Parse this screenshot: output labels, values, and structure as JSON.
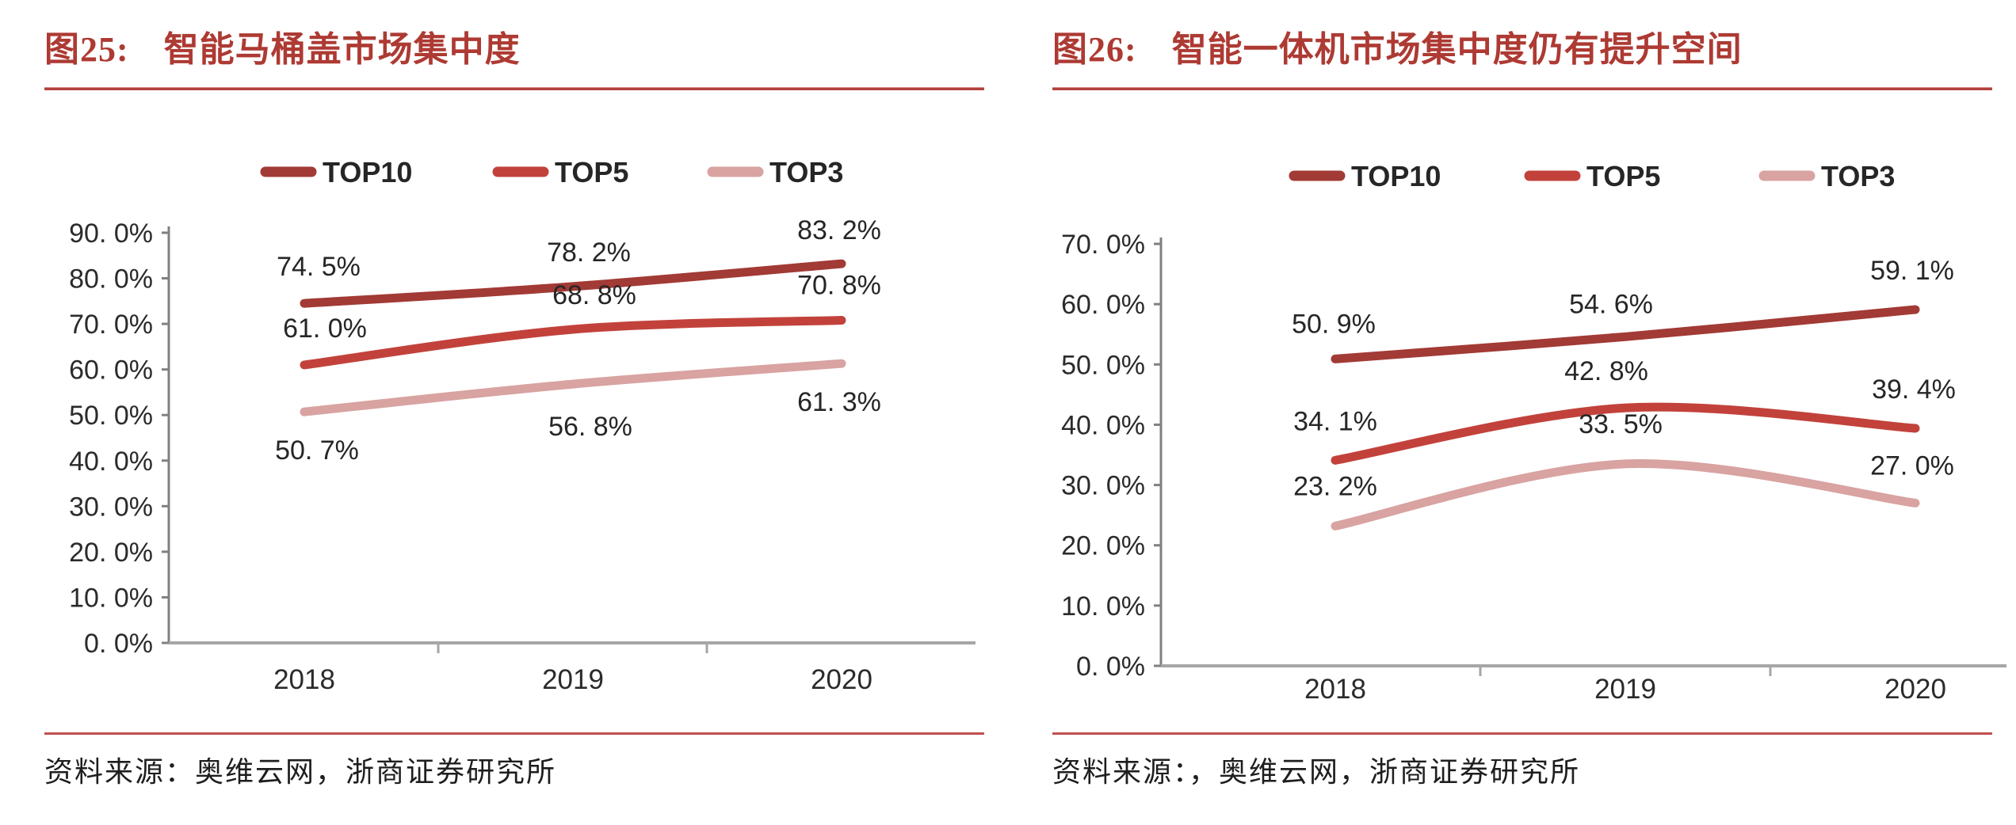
{
  "page": {
    "background": "#ffffff",
    "accent_color": "#ad3a33",
    "title_rule_color": "#b2423c",
    "source_rule_color": "#c0504d",
    "axis_line_color": "#a6a6a6",
    "axis_tick_color": "#808080",
    "text_color": "#262626"
  },
  "figures": [
    {
      "label": "图25:",
      "title": "智能马桶盖市场集中度",
      "source": "资料来源：奥维云网，浙商证券研究所",
      "chart_data": {
        "type": "line",
        "categories": [
          "2018",
          "2019",
          "2020"
        ],
        "ylim": [
          0,
          90
        ],
        "ytick_step": 10,
        "ytick_labels": [
          "0. 0%",
          "10. 0%",
          "20. 0%",
          "30. 0%",
          "40. 0%",
          "50. 0%",
          "60. 0%",
          "70. 0%",
          "80. 0%",
          "90. 0%"
        ],
        "grid": false,
        "legend_position": "top",
        "series": [
          {
            "name": "TOP10",
            "color": "#a23a35",
            "values": [
              74.5,
              78.2,
              83.2
            ],
            "point_labels": [
              "74. 5%",
              "78. 2%",
              "83. 2%"
            ]
          },
          {
            "name": "TOP5",
            "color": "#c2423b",
            "values": [
              61.0,
              68.8,
              70.8
            ],
            "point_labels": [
              "61. 0%",
              "68. 8%",
              "70. 8%"
            ]
          },
          {
            "name": "TOP3",
            "color": "#d8a3a1",
            "values": [
              50.7,
              56.8,
              61.3
            ],
            "point_labels": [
              "50. 7%",
              "56. 8%",
              "61. 3%"
            ]
          }
        ],
        "label_offsets": [
          [
            [
              18,
              -47
            ],
            [
              20,
              -44
            ],
            [
              -3,
              -43
            ]
          ],
          [
            [
              26,
              -47
            ],
            [
              27,
              -44
            ],
            [
              -3,
              -45
            ]
          ],
          [
            [
              16,
              48
            ],
            [
              22,
              53
            ],
            [
              -3,
              48
            ]
          ]
        ]
      }
    },
    {
      "label": "图26:",
      "title": "智能一体机市场集中度仍有提升空间",
      "source": "资料来源：，奥维云网，浙商证券研究所",
      "chart_data": {
        "type": "line",
        "categories": [
          "2018",
          "2019",
          "2020"
        ],
        "ylim": [
          0,
          70
        ],
        "ytick_step": 10,
        "ytick_labels": [
          "0. 0%",
          "10. 0%",
          "20. 0%",
          "30. 0%",
          "40. 0%",
          "50. 0%",
          "60. 0%",
          "70. 0%"
        ],
        "grid": false,
        "legend_position": "top",
        "series": [
          {
            "name": "TOP10",
            "color": "#a23a35",
            "values": [
              50.9,
              54.6,
              59.1
            ],
            "point_labels": [
              "50. 9%",
              "54. 6%",
              "59. 1%"
            ]
          },
          {
            "name": "TOP5",
            "color": "#c2423b",
            "values": [
              34.1,
              42.8,
              39.4
            ],
            "point_labels": [
              "34. 1%",
              "42. 8%",
              "39. 4%"
            ]
          },
          {
            "name": "TOP3",
            "color": "#d8a3a1",
            "values": [
              23.2,
              33.5,
              27.0
            ],
            "point_labels": [
              "23. 2%",
              "33. 5%",
              "27. 0%"
            ]
          }
        ],
        "label_offsets": [
          [
            [
              -2,
              -45
            ],
            [
              -18,
              -42
            ],
            [
              -4,
              -50
            ]
          ],
          [
            [
              0,
              -50
            ],
            [
              -24,
              -47
            ],
            [
              -2,
              -50
            ]
          ],
          [
            [
              0,
              -51
            ],
            [
              -6,
              -51
            ],
            [
              -4,
              -48
            ]
          ]
        ]
      }
    }
  ]
}
